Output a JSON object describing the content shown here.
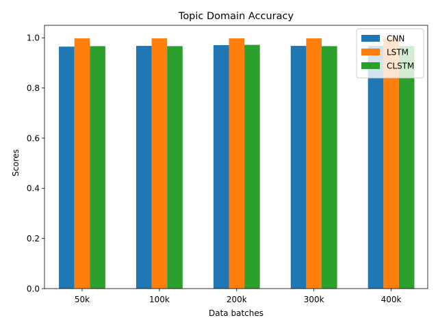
{
  "chart_data": {
    "type": "bar",
    "title": "Topic Domain Accuracy",
    "xlabel": "Data batches",
    "ylabel": "Scores",
    "categories": [
      "50k",
      "100k",
      "200k",
      "300k",
      "400k"
    ],
    "series": [
      {
        "name": "CNN",
        "color": "#1f77b4",
        "values": [
          0.965,
          0.968,
          0.971,
          0.968,
          0.968
        ]
      },
      {
        "name": "LSTM",
        "color": "#ff7f0e",
        "values": [
          0.998,
          0.998,
          0.998,
          0.998,
          0.998
        ]
      },
      {
        "name": "CLSTM",
        "color": "#2ca02c",
        "values": [
          0.967,
          0.967,
          0.972,
          0.967,
          0.967
        ]
      }
    ],
    "ylim": [
      0,
      1.05
    ],
    "yticks": [
      0.0,
      0.2,
      0.4,
      0.6,
      0.8,
      1.0
    ],
    "ytick_labels": [
      "0.0",
      "0.2",
      "0.4",
      "0.6",
      "0.8",
      "1.0"
    ],
    "grid": false,
    "legend_position": "top-right"
  }
}
